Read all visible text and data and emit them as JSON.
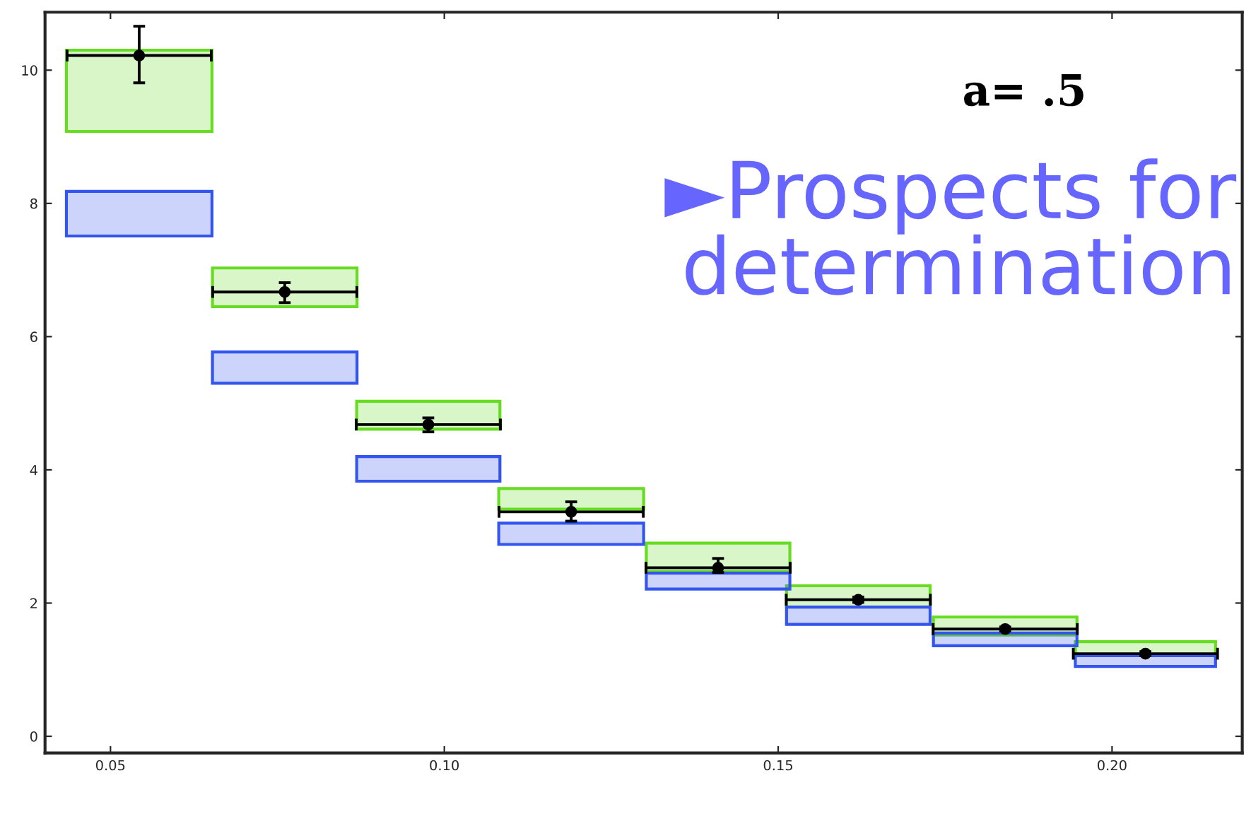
{
  "chart_data": {
    "type": "bar",
    "x": [
      0.0543,
      0.0761,
      0.0976,
      0.119,
      0.141,
      0.162,
      0.184,
      0.205
    ],
    "series": [
      {
        "color": "#66dd22",
        "base": [
          9.08,
          6.45,
          4.61,
          3.41,
          2.47,
          1.94,
          1.52,
          1.21
        ],
        "values": [
          1.22,
          0.58,
          0.42,
          0.31,
          0.43,
          0.32,
          0.27,
          0.21
        ]
      },
      {
        "color": "#3355ee",
        "base": [
          7.51,
          5.3,
          3.83,
          2.88,
          2.21,
          1.68,
          1.36,
          1.05
        ],
        "values": [
          0.67,
          0.47,
          0.37,
          0.32,
          0.24,
          0.26,
          0.19,
          0.16
        ]
      },
      {
        "type": "scatter",
        "color": "#000000",
        "marker": "circle",
        "values": [
          10.22,
          6.67,
          4.68,
          3.37,
          2.53,
          2.05,
          1.61,
          1.24
        ],
        "errors": [
          [
            9.81,
            10.66
          ],
          [
            6.51,
            6.81
          ],
          [
            4.57,
            4.78
          ],
          [
            3.23,
            3.52
          ],
          [
            2.46,
            2.67
          ],
          [
            2.01,
            2.09
          ],
          [
            1.58,
            1.64
          ],
          [
            1.21,
            1.27
          ]
        ],
        "xerrors": [
          0.0108,
          0.0108,
          0.0108,
          0.0108,
          0.0108,
          0.0108,
          0.0108,
          0.0108
        ]
      }
    ],
    "xlim": [
      0.0402,
      0.2195
    ],
    "ylim": [
      -0.25,
      10.87
    ],
    "xticks": [
      {
        "value": 0.05,
        "label": "0.05"
      },
      {
        "value": 0.1,
        "label": "0.10"
      },
      {
        "value": 0.15,
        "label": "0.15"
      },
      {
        "value": 0.2,
        "label": "0.20"
      }
    ],
    "yticks": [
      0,
      2,
      4,
      6,
      8,
      10
    ],
    "grid": false,
    "annotations": [
      "a= .5",
      "►Prospects for determination"
    ]
  }
}
